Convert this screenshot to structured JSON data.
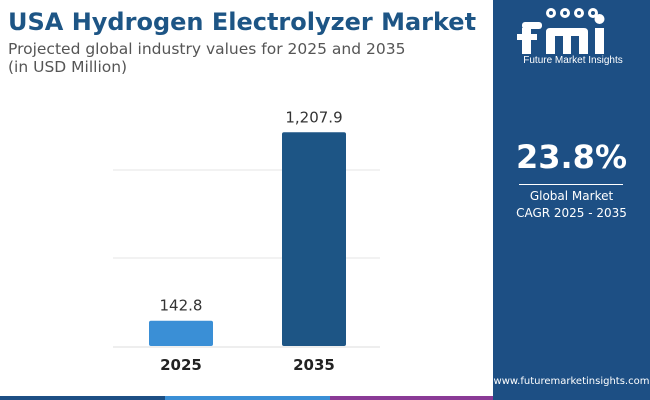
{
  "title": "USA Hydrogen Electrolyzer Market",
  "subtitle_line1": "Projected global industry values for 2025 and 2035",
  "subtitle_line2": "(in USD Million)",
  "chart_data": {
    "type": "bar",
    "categories": [
      "2025",
      "2035"
    ],
    "values": [
      142.8,
      1207.9
    ],
    "value_labels": [
      "142.8",
      "1,207.9"
    ],
    "ylim": [
      0,
      1300
    ],
    "unit": "USD Million",
    "bar_colors": [
      "#3a8fd6",
      "#1d5585"
    ],
    "grid": true
  },
  "sidebar": {
    "brand": "Future Market Insights",
    "cagr_value": "23.8%",
    "cagr_label_line1": "Global Market",
    "cagr_label_line2": "CAGR 2025 - 2035",
    "website": "www.futuremarketinsights.com"
  },
  "colors": {
    "title": "#1d5585",
    "sidebar_bg": "#1d4f84",
    "stripe": [
      "#1d4f84",
      "#3a8fd6",
      "#8a3a96",
      "#1d4f84"
    ]
  }
}
